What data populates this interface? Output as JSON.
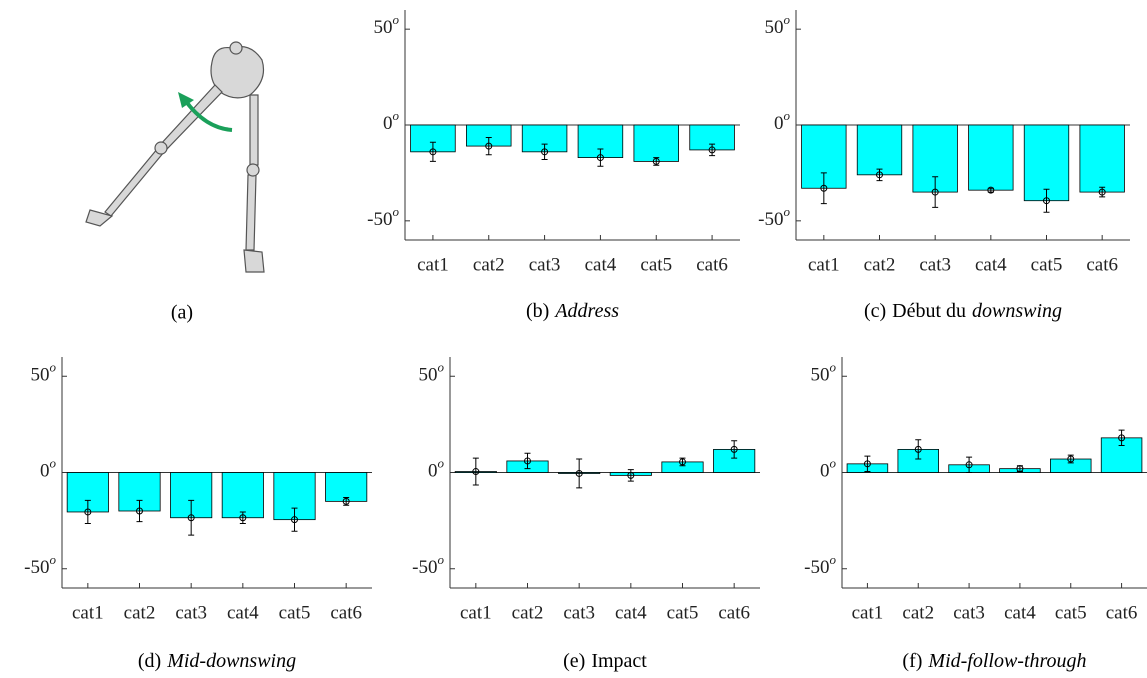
{
  "illustration": {
    "caption_label": "(a)"
  },
  "chart_data": [
    {
      "type": "bar",
      "caption_label": "(b)",
      "caption_italic": "Address",
      "categories": [
        "cat1",
        "cat2",
        "cat3",
        "cat4",
        "cat5",
        "cat6"
      ],
      "values": [
        -14,
        -11,
        -14,
        -17,
        -19,
        -13
      ],
      "errors": [
        5,
        4.5,
        4,
        4.5,
        2,
        3
      ],
      "color": "#00ffff",
      "ylim": [
        -60,
        60
      ],
      "yticks": [
        -50,
        0,
        50
      ],
      "y_unit": "o"
    },
    {
      "type": "bar",
      "caption_label": "(c)",
      "caption": "Début du",
      "caption_italic": "downswing",
      "categories": [
        "cat1",
        "cat2",
        "cat3",
        "cat4",
        "cat5",
        "cat6"
      ],
      "values": [
        -33,
        -26,
        -35,
        -34,
        -39.5,
        -35
      ],
      "errors": [
        8,
        3,
        8,
        1,
        6,
        2.5
      ],
      "color": "#00ffff",
      "ylim": [
        -60,
        60
      ],
      "yticks": [
        -50,
        0,
        50
      ],
      "y_unit": "o"
    },
    {
      "type": "bar",
      "caption_label": "(d)",
      "caption_italic": "Mid-downswing",
      "categories": [
        "cat1",
        "cat2",
        "cat3",
        "cat4",
        "cat5",
        "cat6"
      ],
      "values": [
        -20.5,
        -20,
        -23.5,
        -23.5,
        -24.5,
        -15
      ],
      "errors": [
        6,
        5.5,
        9,
        3,
        6,
        2
      ],
      "color": "#00ffff",
      "ylim": [
        -60,
        60
      ],
      "yticks": [
        -50,
        0,
        50
      ],
      "y_unit": "o"
    },
    {
      "type": "bar",
      "caption_label": "(e)",
      "caption": "Impact",
      "categories": [
        "cat1",
        "cat2",
        "cat3",
        "cat4",
        "cat5",
        "cat6"
      ],
      "values": [
        0.5,
        6,
        -0.5,
        -1.5,
        5.5,
        12
      ],
      "errors": [
        7,
        4,
        7.5,
        3,
        2,
        4.5
      ],
      "color": "#00ffff",
      "ylim": [
        -60,
        60
      ],
      "yticks": [
        -50,
        0,
        50
      ],
      "y_unit": "o"
    },
    {
      "type": "bar",
      "caption_label": "(f)",
      "caption_italic": "Mid-follow-through",
      "categories": [
        "cat1",
        "cat2",
        "cat3",
        "cat4",
        "cat5",
        "cat6"
      ],
      "values": [
        4.5,
        12,
        4,
        2,
        7,
        18
      ],
      "errors": [
        4,
        5,
        4,
        1.5,
        2,
        4
      ],
      "color": "#00ffff",
      "ylim": [
        -60,
        60
      ],
      "yticks": [
        -50,
        0,
        50
      ],
      "y_unit": "o"
    }
  ]
}
